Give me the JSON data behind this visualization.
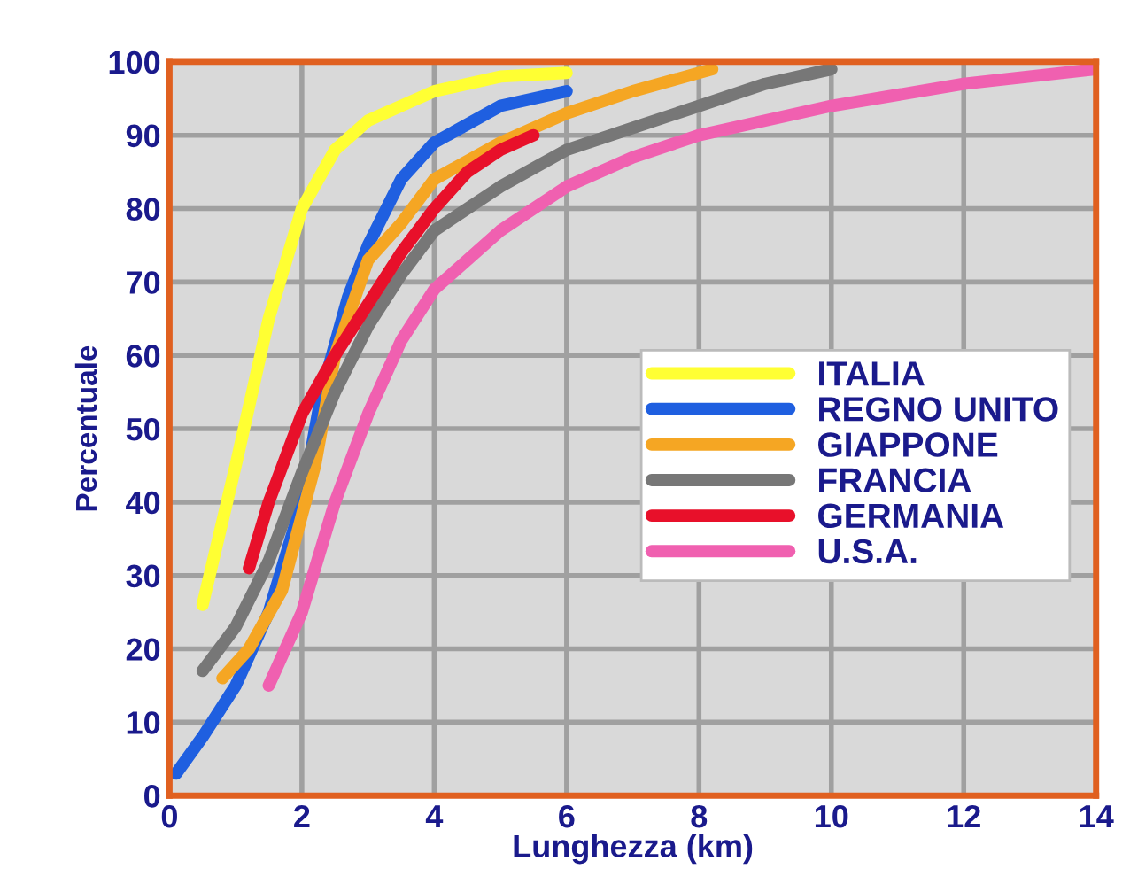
{
  "chart_data": {
    "type": "line",
    "xlabel": "Lunghezza (km)",
    "ylabel": "Percentuale",
    "xlim": [
      0,
      14
    ],
    "xticks": [
      0,
      2,
      4,
      6,
      8,
      10,
      12,
      14
    ],
    "ylim": [
      0,
      100
    ],
    "yticks": [
      0,
      10,
      20,
      30,
      40,
      50,
      60,
      70,
      80,
      90,
      100
    ],
    "grid": true,
    "legend": "right",
    "marker": "none",
    "line_style": "solid",
    "series": [
      {
        "name": "ITALIA",
        "color": "#ffff33",
        "x": [
          0.5,
          1,
          1.5,
          2,
          2.5,
          3,
          4,
          5,
          6
        ],
        "values": [
          26,
          45,
          65,
          80,
          88,
          92,
          96,
          98,
          98.5
        ]
      },
      {
        "name": "REGNO UNITO",
        "color": "#1f5fe0",
        "x": [
          0.1,
          0.5,
          1,
          1.5,
          2,
          2.3,
          2.7,
          3,
          3.5,
          4,
          5,
          6
        ],
        "values": [
          3,
          8,
          15,
          25,
          40,
          55,
          68,
          75,
          84,
          89,
          94,
          96
        ]
      },
      {
        "name": "GIAPPONE",
        "color": "#f5a623",
        "x": [
          0.8,
          1.2,
          1.7,
          2.2,
          2.5,
          3,
          3.5,
          4,
          5,
          6,
          7,
          8.2
        ],
        "values": [
          16,
          20,
          28,
          45,
          60,
          73,
          78,
          84,
          89,
          93,
          96,
          99
        ]
      },
      {
        "name": "FRANCIA",
        "color": "#777777",
        "x": [
          0.5,
          1,
          1.5,
          2,
          2.5,
          3,
          3.5,
          4,
          5,
          6,
          7,
          8,
          9,
          10
        ],
        "values": [
          17,
          23,
          32,
          44,
          55,
          64,
          71,
          77,
          83,
          88,
          91,
          94,
          97,
          99
        ]
      },
      {
        "name": "GERMANIA",
        "color": "#e8102a",
        "x": [
          1.2,
          1.5,
          2,
          2.5,
          3,
          3.5,
          4,
          4.5,
          5,
          5.5
        ],
        "values": [
          31,
          40,
          52,
          60,
          67,
          74,
          80,
          85,
          88,
          90
        ]
      },
      {
        "name": "U.S.A.",
        "color": "#f060b0",
        "x": [
          1.5,
          2,
          2.5,
          3,
          3.5,
          4,
          5,
          6,
          7,
          8,
          10,
          12,
          14
        ],
        "values": [
          15,
          25,
          40,
          52,
          62,
          69,
          77,
          83,
          87,
          90,
          94,
          97,
          99
        ]
      }
    ]
  }
}
